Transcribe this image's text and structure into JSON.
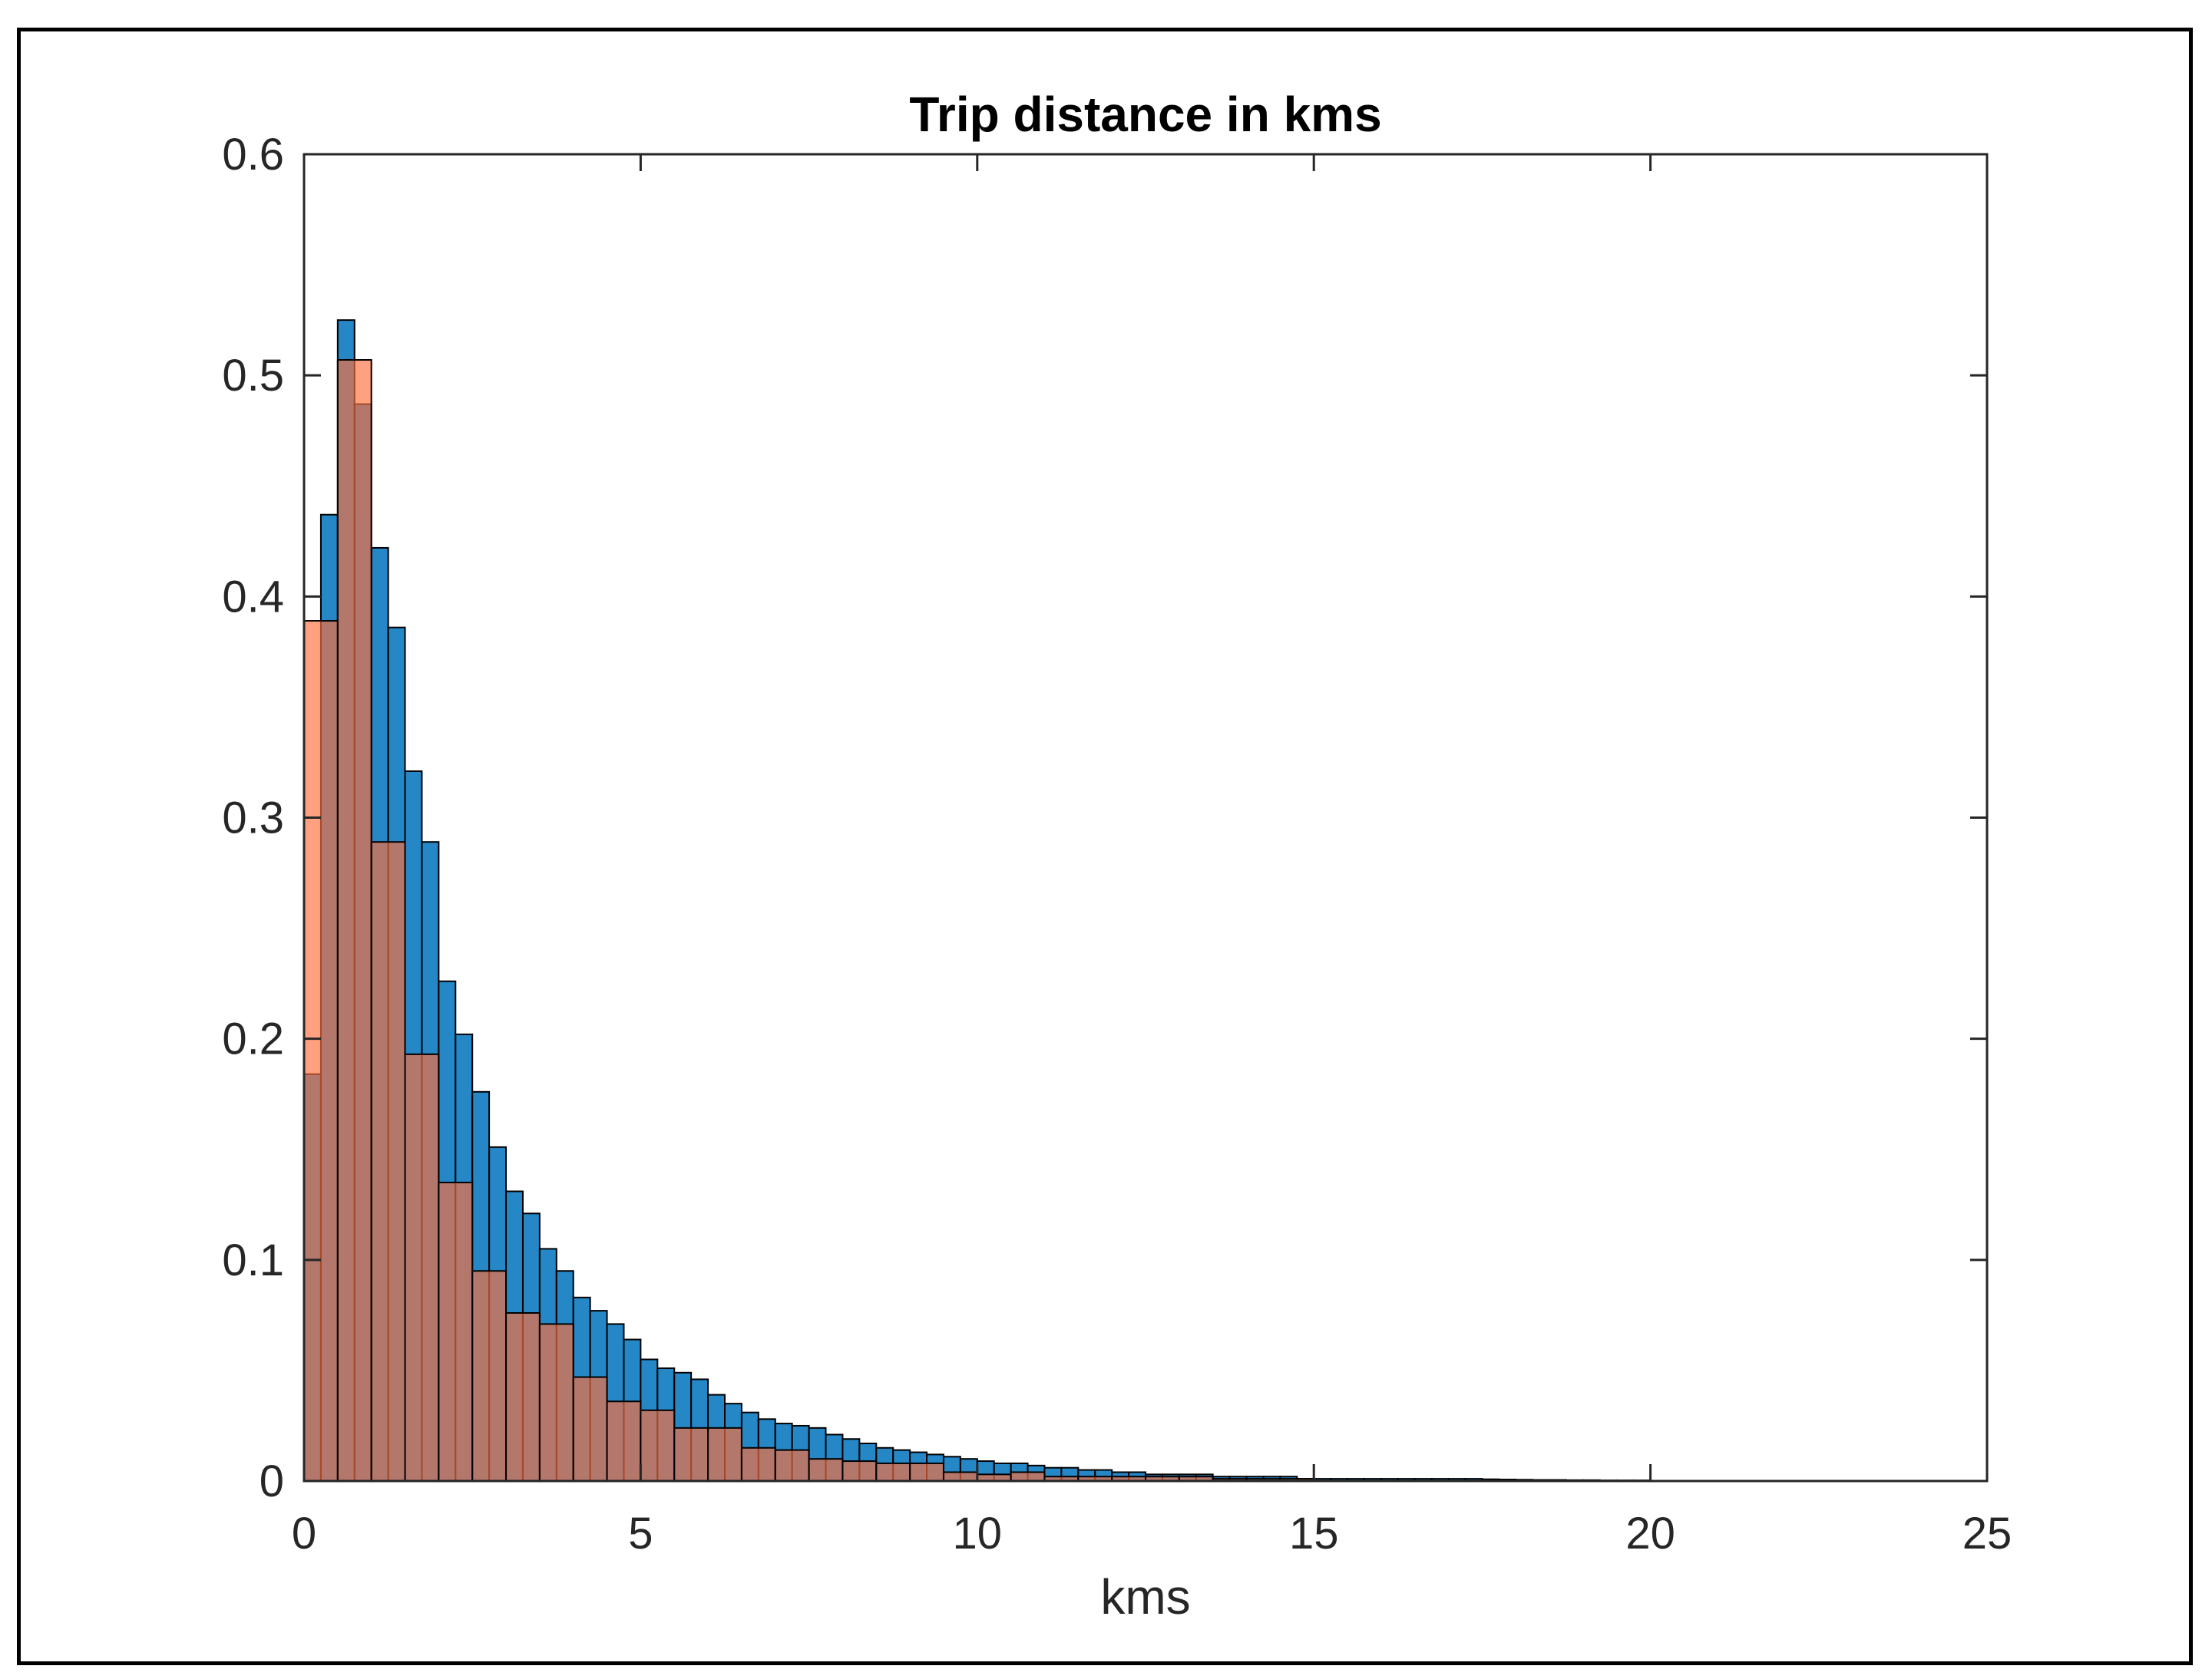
{
  "chart_data": {
    "type": "bar",
    "title": "Trip distance in kms",
    "xlabel": "kms",
    "ylabel": "",
    "xlim": [
      0,
      25
    ],
    "ylim": [
      0,
      0.6
    ],
    "xticks": [
      0,
      5,
      10,
      15,
      20,
      25
    ],
    "yticks": [
      0,
      0.1,
      0.2,
      0.3,
      0.4,
      0.5,
      0.6
    ],
    "xtick_labels": [
      "0",
      "5",
      "10",
      "15",
      "20",
      "25"
    ],
    "ytick_labels": [
      "0",
      "0.1",
      "0.2",
      "0.3",
      "0.4",
      "0.5",
      "0.6"
    ],
    "grid": false,
    "legend": "none",
    "series": [
      {
        "color": "#0072BD",
        "bin_width": 0.25,
        "bin_start": 0,
        "values": [
          0.184,
          0.437,
          0.525,
          0.487,
          0.422,
          0.386,
          0.321,
          0.289,
          0.226,
          0.202,
          0.176,
          0.151,
          0.131,
          0.121,
          0.105,
          0.095,
          0.083,
          0.077,
          0.071,
          0.064,
          0.055,
          0.051,
          0.049,
          0.046,
          0.039,
          0.035,
          0.031,
          0.028,
          0.026,
          0.025,
          0.024,
          0.021,
          0.019,
          0.017,
          0.015,
          0.014,
          0.013,
          0.012,
          0.011,
          0.01,
          0.009,
          0.008,
          0.008,
          0.007,
          0.006,
          0.006,
          0.005,
          0.005,
          0.004,
          0.004,
          0.003,
          0.003,
          0.003,
          0.003,
          0.002,
          0.002,
          0.002,
          0.002,
          0.002,
          0.001,
          0.001,
          0.001,
          0.001,
          0.001,
          0.001,
          0.001,
          0.001,
          0.001,
          0.001,
          0.001,
          0.0008,
          0.0007,
          0.0006,
          0.0005,
          0.0005,
          0.0004,
          0.0004,
          0.0003,
          0.0003,
          0.0003
        ]
      },
      {
        "color": "#FF6F3C",
        "bin_width": 0.5,
        "bin_start": 0,
        "values": [
          0.389,
          0.507,
          0.289,
          0.193,
          0.135,
          0.095,
          0.076,
          0.071,
          0.047,
          0.036,
          0.032,
          0.024,
          0.024,
          0.015,
          0.014,
          0.01,
          0.009,
          0.008,
          0.008,
          0.004,
          0.003,
          0.004,
          0.002,
          0.002,
          0.002,
          0.002,
          0.002,
          0.001,
          0.001,
          0.001
        ]
      }
    ]
  }
}
